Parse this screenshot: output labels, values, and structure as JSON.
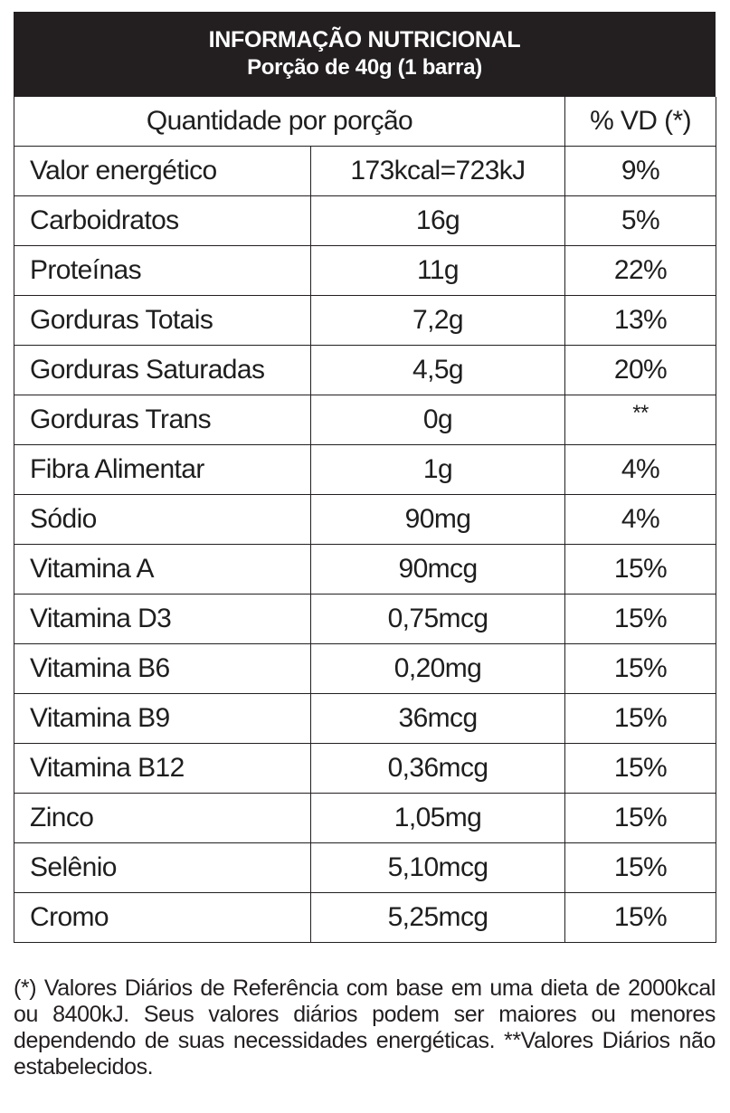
{
  "header": {
    "title": "INFORMAÇÃO NUTRICIONAL",
    "serving": "Porção de 40g (1 barra)"
  },
  "table": {
    "col_quantity_header": "Quantidade por porção",
    "col_vd_header": "% VD (*)",
    "rows": [
      {
        "name": "Valor energético",
        "qty": "173kcal=723kJ",
        "vd": "9%"
      },
      {
        "name": "Carboidratos",
        "qty": "16g",
        "vd": "5%"
      },
      {
        "name": "Proteínas",
        "qty": "11g",
        "vd": "22%"
      },
      {
        "name": "Gorduras Totais",
        "qty": "7,2g",
        "vd": "13%"
      },
      {
        "name": "Gorduras Saturadas",
        "qty": "4,5g",
        "vd": "20%"
      },
      {
        "name": "Gorduras Trans",
        "qty": "0g",
        "vd": "**"
      },
      {
        "name": "Fibra Alimentar",
        "qty": "1g",
        "vd": "4%"
      },
      {
        "name": "Sódio",
        "qty": "90mg",
        "vd": "4%"
      },
      {
        "name": "Vitamina A",
        "qty": "90mcg",
        "vd": "15%"
      },
      {
        "name": "Vitamina D3",
        "qty": "0,75mcg",
        "vd": "15%"
      },
      {
        "name": "Vitamina B6",
        "qty": "0,20mg",
        "vd": "15%"
      },
      {
        "name": "Vitamina B9",
        "qty": "36mcg",
        "vd": "15%"
      },
      {
        "name": "Vitamina B12",
        "qty": "0,36mcg",
        "vd": "15%"
      },
      {
        "name": "Zinco",
        "qty": "1,05mg",
        "vd": "15%"
      },
      {
        "name": "Selênio",
        "qty": "5,10mcg",
        "vd": "15%"
      },
      {
        "name": "Cromo",
        "qty": "5,25mcg",
        "vd": "15%"
      }
    ]
  },
  "footnote": "(*) Valores Diários de Referência com base em uma dieta de 2000kcal ou 8400kJ. Seus valores diários podem ser maiores ou menores dependendo de suas necessidades energéticas. **Valores Diários não estabelecidos.",
  "colors": {
    "header_background": "#231f20",
    "header_text": "#ffffff",
    "border": "#231f20"
  }
}
